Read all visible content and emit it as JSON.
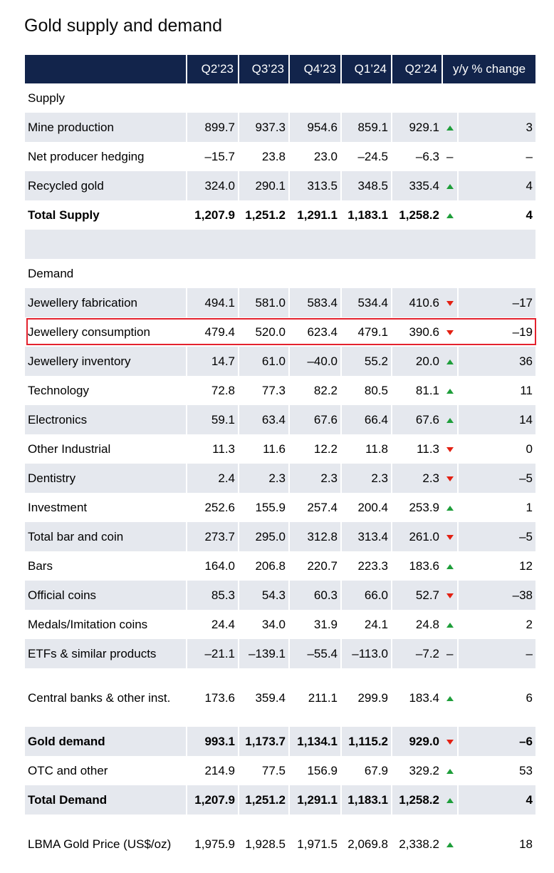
{
  "title": "Gold supply and demand",
  "columns": [
    "Q2’23",
    "Q3’23",
    "Q4’23",
    "Q1’24",
    "Q2’24"
  ],
  "change_header": "y/y % change",
  "colors": {
    "header_bg": "#12244b",
    "row_shade": "#e5e8ee",
    "up": "#1e9e3a",
    "down": "#e32012",
    "highlight": "#e3222e"
  },
  "rows": [
    {
      "type": "section",
      "label": "Supply"
    },
    {
      "label": "Mine production",
      "values": [
        "899.7",
        "937.3",
        "954.6",
        "859.1",
        "929.1"
      ],
      "trend": "up",
      "change": "3"
    },
    {
      "label": "Net producer hedging",
      "values": [
        "–15.7",
        "23.8",
        "23.0",
        "–24.5",
        "–6.3"
      ],
      "trend": "none",
      "trend_text": "–",
      "change": "–"
    },
    {
      "label": "Recycled gold",
      "values": [
        "324.0",
        "290.1",
        "313.5",
        "348.5",
        "335.4"
      ],
      "trend": "up",
      "change": "4"
    },
    {
      "label": "Total Supply",
      "values": [
        "1,207.9",
        "1,251.2",
        "1,291.1",
        "1,183.1",
        "1,258.2"
      ],
      "trend": "up",
      "change": "4",
      "bold": true
    },
    {
      "type": "blank"
    },
    {
      "type": "section",
      "label": "Demand"
    },
    {
      "label": "Jewellery fabrication",
      "values": [
        "494.1",
        "581.0",
        "583.4",
        "534.4",
        "410.6"
      ],
      "trend": "down",
      "change": "–17"
    },
    {
      "label": "Jewellery consumption",
      "values": [
        "479.4",
        "520.0",
        "623.4",
        "479.1",
        "390.6"
      ],
      "trend": "down",
      "change": "–19",
      "highlighted": true
    },
    {
      "label": "Jewellery inventory",
      "values": [
        "14.7",
        "61.0",
        "–40.0",
        "55.2",
        "20.0"
      ],
      "trend": "up",
      "change": "36"
    },
    {
      "label": "Technology",
      "values": [
        "72.8",
        "77.3",
        "82.2",
        "80.5",
        "81.1"
      ],
      "trend": "up",
      "change": "11"
    },
    {
      "label": "Electronics",
      "values": [
        "59.1",
        "63.4",
        "67.6",
        "66.4",
        "67.6"
      ],
      "trend": "up",
      "change": "14"
    },
    {
      "label": "Other Industrial",
      "values": [
        "11.3",
        "11.6",
        "12.2",
        "11.8",
        "11.3"
      ],
      "trend": "down",
      "change": "0"
    },
    {
      "label": "Dentistry",
      "values": [
        "2.4",
        "2.3",
        "2.3",
        "2.3",
        "2.3"
      ],
      "trend": "down",
      "change": "–5"
    },
    {
      "label": "Investment",
      "values": [
        "252.6",
        "155.9",
        "257.4",
        "200.4",
        "253.9"
      ],
      "trend": "up",
      "change": "1"
    },
    {
      "label": "Total bar and coin",
      "values": [
        "273.7",
        "295.0",
        "312.8",
        "313.4",
        "261.0"
      ],
      "trend": "down",
      "change": "–5"
    },
    {
      "label": "Bars",
      "values": [
        "164.0",
        "206.8",
        "220.7",
        "223.3",
        "183.6"
      ],
      "trend": "up",
      "change": "12"
    },
    {
      "label": "Official coins",
      "values": [
        "85.3",
        "54.3",
        "60.3",
        "66.0",
        "52.7"
      ],
      "trend": "down",
      "change": "–38"
    },
    {
      "label": "Medals/Imitation coins",
      "values": [
        "24.4",
        "34.0",
        "31.9",
        "24.1",
        "24.8"
      ],
      "trend": "up",
      "change": "2"
    },
    {
      "label": "ETFs & similar products",
      "values": [
        "–21.1",
        "–139.1",
        "–55.4",
        "–113.0",
        "–7.2"
      ],
      "trend": "none",
      "trend_text": "–",
      "change": "–"
    },
    {
      "label": "Central banks & other inst.",
      "values": [
        "173.6",
        "359.4",
        "211.1",
        "299.9",
        "183.4"
      ],
      "trend": "up",
      "change": "6",
      "tall": true
    },
    {
      "label": "Gold demand",
      "values": [
        "993.1",
        "1,173.7",
        "1,134.1",
        "1,115.2",
        "929.0"
      ],
      "trend": "down",
      "change": "–6",
      "bold": true
    },
    {
      "label": "OTC and other",
      "values": [
        "214.9",
        "77.5",
        "156.9",
        "67.9",
        "329.2"
      ],
      "trend": "up",
      "change": "53"
    },
    {
      "label": "Total Demand",
      "values": [
        "1,207.9",
        "1,251.2",
        "1,291.1",
        "1,183.1",
        "1,258.2"
      ],
      "trend": "up",
      "change": "4",
      "bold": true
    },
    {
      "label": "LBMA Gold Price (US$/oz)",
      "values": [
        "1,975.9",
        "1,928.5",
        "1,971.5",
        "2,069.8",
        "2,338.2"
      ],
      "trend": "up",
      "change": "18",
      "tall": true
    }
  ]
}
